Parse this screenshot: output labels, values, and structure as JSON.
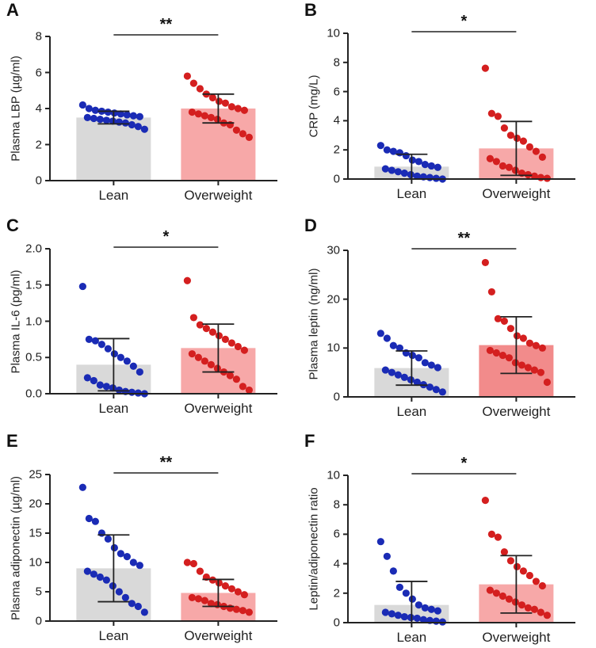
{
  "colors": {
    "lean_bar": "#d9d9d9",
    "lean_dot": "#1a2bb5",
    "overweight_bar": "#f7a8a8",
    "overweight_bar_strong": "#f28b8b",
    "overweight_dot": "#d41f1f",
    "axis": "#222222"
  },
  "chart_data": [
    {
      "type": "bar",
      "letter": "A",
      "categories": [
        "Lean",
        "Overweight"
      ],
      "ylabel": "Plasma LBP (µg/ml)",
      "ylim": [
        0,
        8
      ],
      "yticks": [
        "0",
        "2",
        "4",
        "6",
        "8"
      ],
      "means": [
        3.5,
        4.0
      ],
      "sd": [
        0.35,
        0.8
      ],
      "points": [
        [
          4.2,
          4.0,
          3.9,
          3.85,
          3.8,
          3.75,
          3.7,
          3.65,
          3.6,
          3.55,
          3.5,
          3.45,
          3.4,
          3.35,
          3.3,
          3.25,
          3.2,
          3.1,
          3.0,
          2.85
        ],
        [
          5.8,
          5.4,
          5.1,
          4.8,
          4.6,
          4.4,
          4.3,
          4.1,
          4.0,
          3.9,
          3.8,
          3.7,
          3.6,
          3.5,
          3.4,
          3.2,
          3.1,
          2.8,
          2.6,
          2.4
        ]
      ],
      "significance": "**"
    },
    {
      "type": "bar",
      "letter": "B",
      "categories": [
        "Lean",
        "Overweight"
      ],
      "ylabel": "CRP (mg/L)",
      "ylim": [
        0,
        10
      ],
      "yticks": [
        "0",
        "2",
        "4",
        "6",
        "8",
        "10"
      ],
      "means": [
        0.85,
        2.1
      ],
      "sd": [
        0.85,
        1.85
      ],
      "points": [
        [
          2.3,
          2.0,
          1.9,
          1.8,
          1.6,
          1.3,
          1.2,
          1.0,
          0.9,
          0.8,
          0.7,
          0.6,
          0.5,
          0.4,
          0.3,
          0.2,
          0.15,
          0.1,
          0.05,
          0.0
        ],
        [
          7.6,
          4.5,
          4.3,
          3.5,
          3.0,
          2.8,
          2.6,
          2.2,
          1.9,
          1.5,
          1.4,
          1.2,
          0.9,
          0.8,
          0.6,
          0.4,
          0.3,
          0.2,
          0.1,
          0.05
        ]
      ],
      "significance": "*"
    },
    {
      "type": "bar",
      "letter": "C",
      "categories": [
        "Lean",
        "Overweight"
      ],
      "ylabel": "Plasma IL-6 (pg/ml)",
      "ylim": [
        0,
        2
      ],
      "yticks": [
        "0.0",
        "0.5",
        "1.0",
        "1.5",
        "2.0"
      ],
      "means": [
        0.4,
        0.63
      ],
      "sd": [
        0.36,
        0.33
      ],
      "points": [
        [
          1.48,
          0.75,
          0.73,
          0.68,
          0.62,
          0.55,
          0.5,
          0.45,
          0.38,
          0.3,
          0.22,
          0.18,
          0.12,
          0.1,
          0.08,
          0.05,
          0.03,
          0.02,
          0.01,
          0.0
        ],
        [
          1.56,
          1.05,
          0.95,
          0.9,
          0.85,
          0.8,
          0.75,
          0.7,
          0.65,
          0.6,
          0.55,
          0.5,
          0.45,
          0.4,
          0.35,
          0.3,
          0.25,
          0.2,
          0.1,
          0.05
        ]
      ],
      "significance": "*"
    },
    {
      "type": "bar",
      "letter": "D",
      "categories": [
        "Lean",
        "Overweight"
      ],
      "ylabel": "Plasma leptin (ng/ml)",
      "ylim": [
        0,
        30
      ],
      "yticks": [
        "0",
        "10",
        "20",
        "30"
      ],
      "means": [
        5.9,
        10.6
      ],
      "sd": [
        3.5,
        5.8
      ],
      "points": [
        [
          13.0,
          12.0,
          10.5,
          10.0,
          9.0,
          8.5,
          8.0,
          7.0,
          6.5,
          6.0,
          5.5,
          5.0,
          4.5,
          4.0,
          3.5,
          3.0,
          2.5,
          2.0,
          1.5,
          1.0
        ],
        [
          27.5,
          21.5,
          16.0,
          15.5,
          14.0,
          12.5,
          12.0,
          11.0,
          10.5,
          10.0,
          9.5,
          9.0,
          8.5,
          8.0,
          7.0,
          6.5,
          6.0,
          5.5,
          5.0,
          3.0
        ]
      ],
      "significance": "**"
    },
    {
      "type": "bar",
      "letter": "E",
      "categories": [
        "Lean",
        "Overweight"
      ],
      "ylabel": "Plasma adiponectin (µg/ml)",
      "ylim": [
        0,
        25
      ],
      "yticks": [
        "0",
        "5",
        "10",
        "15",
        "20",
        "25"
      ],
      "means": [
        9.0,
        4.8
      ],
      "sd": [
        5.7,
        2.3
      ],
      "points": [
        [
          22.8,
          17.5,
          17.0,
          15.0,
          14.0,
          12.5,
          11.5,
          11.0,
          10.0,
          9.5,
          8.5,
          8.0,
          7.5,
          7.0,
          6.0,
          5.0,
          4.0,
          3.0,
          2.5,
          1.5
        ],
        [
          10.0,
          9.8,
          8.5,
          7.5,
          7.0,
          6.5,
          6.0,
          5.5,
          5.0,
          4.5,
          4.0,
          3.8,
          3.5,
          3.0,
          2.8,
          2.5,
          2.2,
          2.0,
          1.8,
          1.5
        ]
      ],
      "significance": "**"
    },
    {
      "type": "bar",
      "letter": "F",
      "categories": [
        "Lean",
        "Overweight"
      ],
      "ylabel": "Leptin/adiponectin ratio",
      "ylim": [
        0,
        10
      ],
      "yticks": [
        "0",
        "2",
        "4",
        "6",
        "8",
        "10"
      ],
      "means": [
        1.2,
        2.6
      ],
      "sd": [
        1.6,
        1.95
      ],
      "points": [
        [
          5.5,
          4.5,
          3.5,
          2.4,
          2.0,
          1.6,
          1.2,
          1.0,
          0.9,
          0.8,
          0.7,
          0.6,
          0.5,
          0.4,
          0.35,
          0.3,
          0.2,
          0.15,
          0.1,
          0.05
        ],
        [
          8.3,
          6.0,
          5.8,
          4.8,
          4.2,
          3.8,
          3.5,
          3.2,
          2.8,
          2.5,
          2.2,
          2.0,
          1.8,
          1.6,
          1.4,
          1.2,
          1.0,
          0.9,
          0.7,
          0.5
        ]
      ],
      "significance": "*"
    }
  ]
}
